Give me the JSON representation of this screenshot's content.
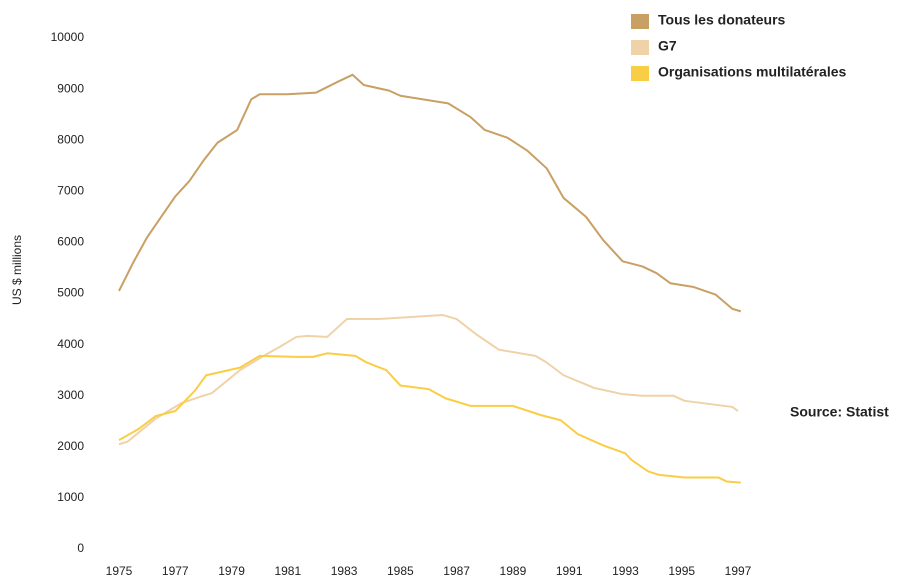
{
  "chart_data": {
    "type": "line",
    "y_label": "US $ millions",
    "annotation": "Source: Statist",
    "xlim": [
      1975,
      1997
    ],
    "xticks": [
      1975,
      1977,
      1979,
      1981,
      1983,
      1985,
      1987,
      1989,
      1991,
      1993,
      1995,
      1997
    ],
    "ylim": [
      0,
      10000
    ],
    "yticks": [
      0,
      1000,
      2000,
      3000,
      4000,
      5000,
      6000,
      7000,
      8000,
      9000,
      10000
    ],
    "grid": false,
    "legend": "top-right",
    "series": [
      {
        "name": "Tous les donateurs",
        "color": "#c9a063",
        "x": [
          1975,
          1975.5,
          1976,
          1976.5,
          1977,
          1977.5,
          1978,
          1978.5,
          1979.2,
          1979.7,
          1980,
          1981,
          1982,
          1982.8,
          1983.3,
          1983.7,
          1984.6,
          1985,
          1986.7,
          1987.5,
          1988,
          1988.8,
          1989.5,
          1990.2,
          1990.8,
          1991.6,
          1992.2,
          1992.9,
          1993.6,
          1994.1,
          1994.6,
          1995.4,
          1996.2,
          1996.8,
          1997.1
        ],
        "values": [
          5050,
          5600,
          6100,
          6500,
          6900,
          7200,
          7600,
          7950,
          8200,
          8800,
          8900,
          8900,
          8930,
          9150,
          9280,
          9080,
          8970,
          8870,
          8720,
          8450,
          8200,
          8050,
          7800,
          7450,
          6870,
          6500,
          6050,
          5630,
          5530,
          5400,
          5200,
          5130,
          4980,
          4700,
          4650
        ]
      },
      {
        "name": "G7",
        "color": "#f0d2a8",
        "x": [
          1975,
          1975.3,
          1976.3,
          1977.2,
          1978,
          1978.3,
          1979.3,
          1980.2,
          1980.7,
          1981.3,
          1981.7,
          1982.4,
          1983.1,
          1984.2,
          1985.1,
          1986.5,
          1987,
          1987.7,
          1988.5,
          1989.8,
          1990.2,
          1990.8,
          1991.9,
          1992.9,
          1993.6,
          1994.7,
          1995.1,
          1996.8,
          1997
        ],
        "values": [
          2050,
          2100,
          2550,
          2850,
          3000,
          3050,
          3500,
          3800,
          3950,
          4150,
          4170,
          4150,
          4500,
          4500,
          4530,
          4580,
          4500,
          4200,
          3900,
          3780,
          3650,
          3400,
          3150,
          3030,
          3000,
          3000,
          2900,
          2780,
          2700
        ]
      },
      {
        "name": "Organisations multilatérales",
        "color": "#f9cd45",
        "x": [
          1975,
          1975.7,
          1976.3,
          1977,
          1977.7,
          1978.1,
          1979.3,
          1980,
          1981.3,
          1981.9,
          1982.4,
          1983.4,
          1983.8,
          1984.5,
          1985,
          1986,
          1986.6,
          1987.5,
          1989,
          1990,
          1990.7,
          1991.3,
          1992.2,
          1993,
          1993.2,
          1993.8,
          1994.2,
          1995.1,
          1996.3,
          1996.6,
          1997.1
        ],
        "values": [
          2130,
          2350,
          2600,
          2700,
          3100,
          3400,
          3550,
          3780,
          3760,
          3760,
          3830,
          3780,
          3650,
          3500,
          3200,
          3130,
          2950,
          2800,
          2800,
          2620,
          2520,
          2250,
          2030,
          1870,
          1750,
          1520,
          1450,
          1400,
          1400,
          1320,
          1300
        ]
      }
    ]
  }
}
